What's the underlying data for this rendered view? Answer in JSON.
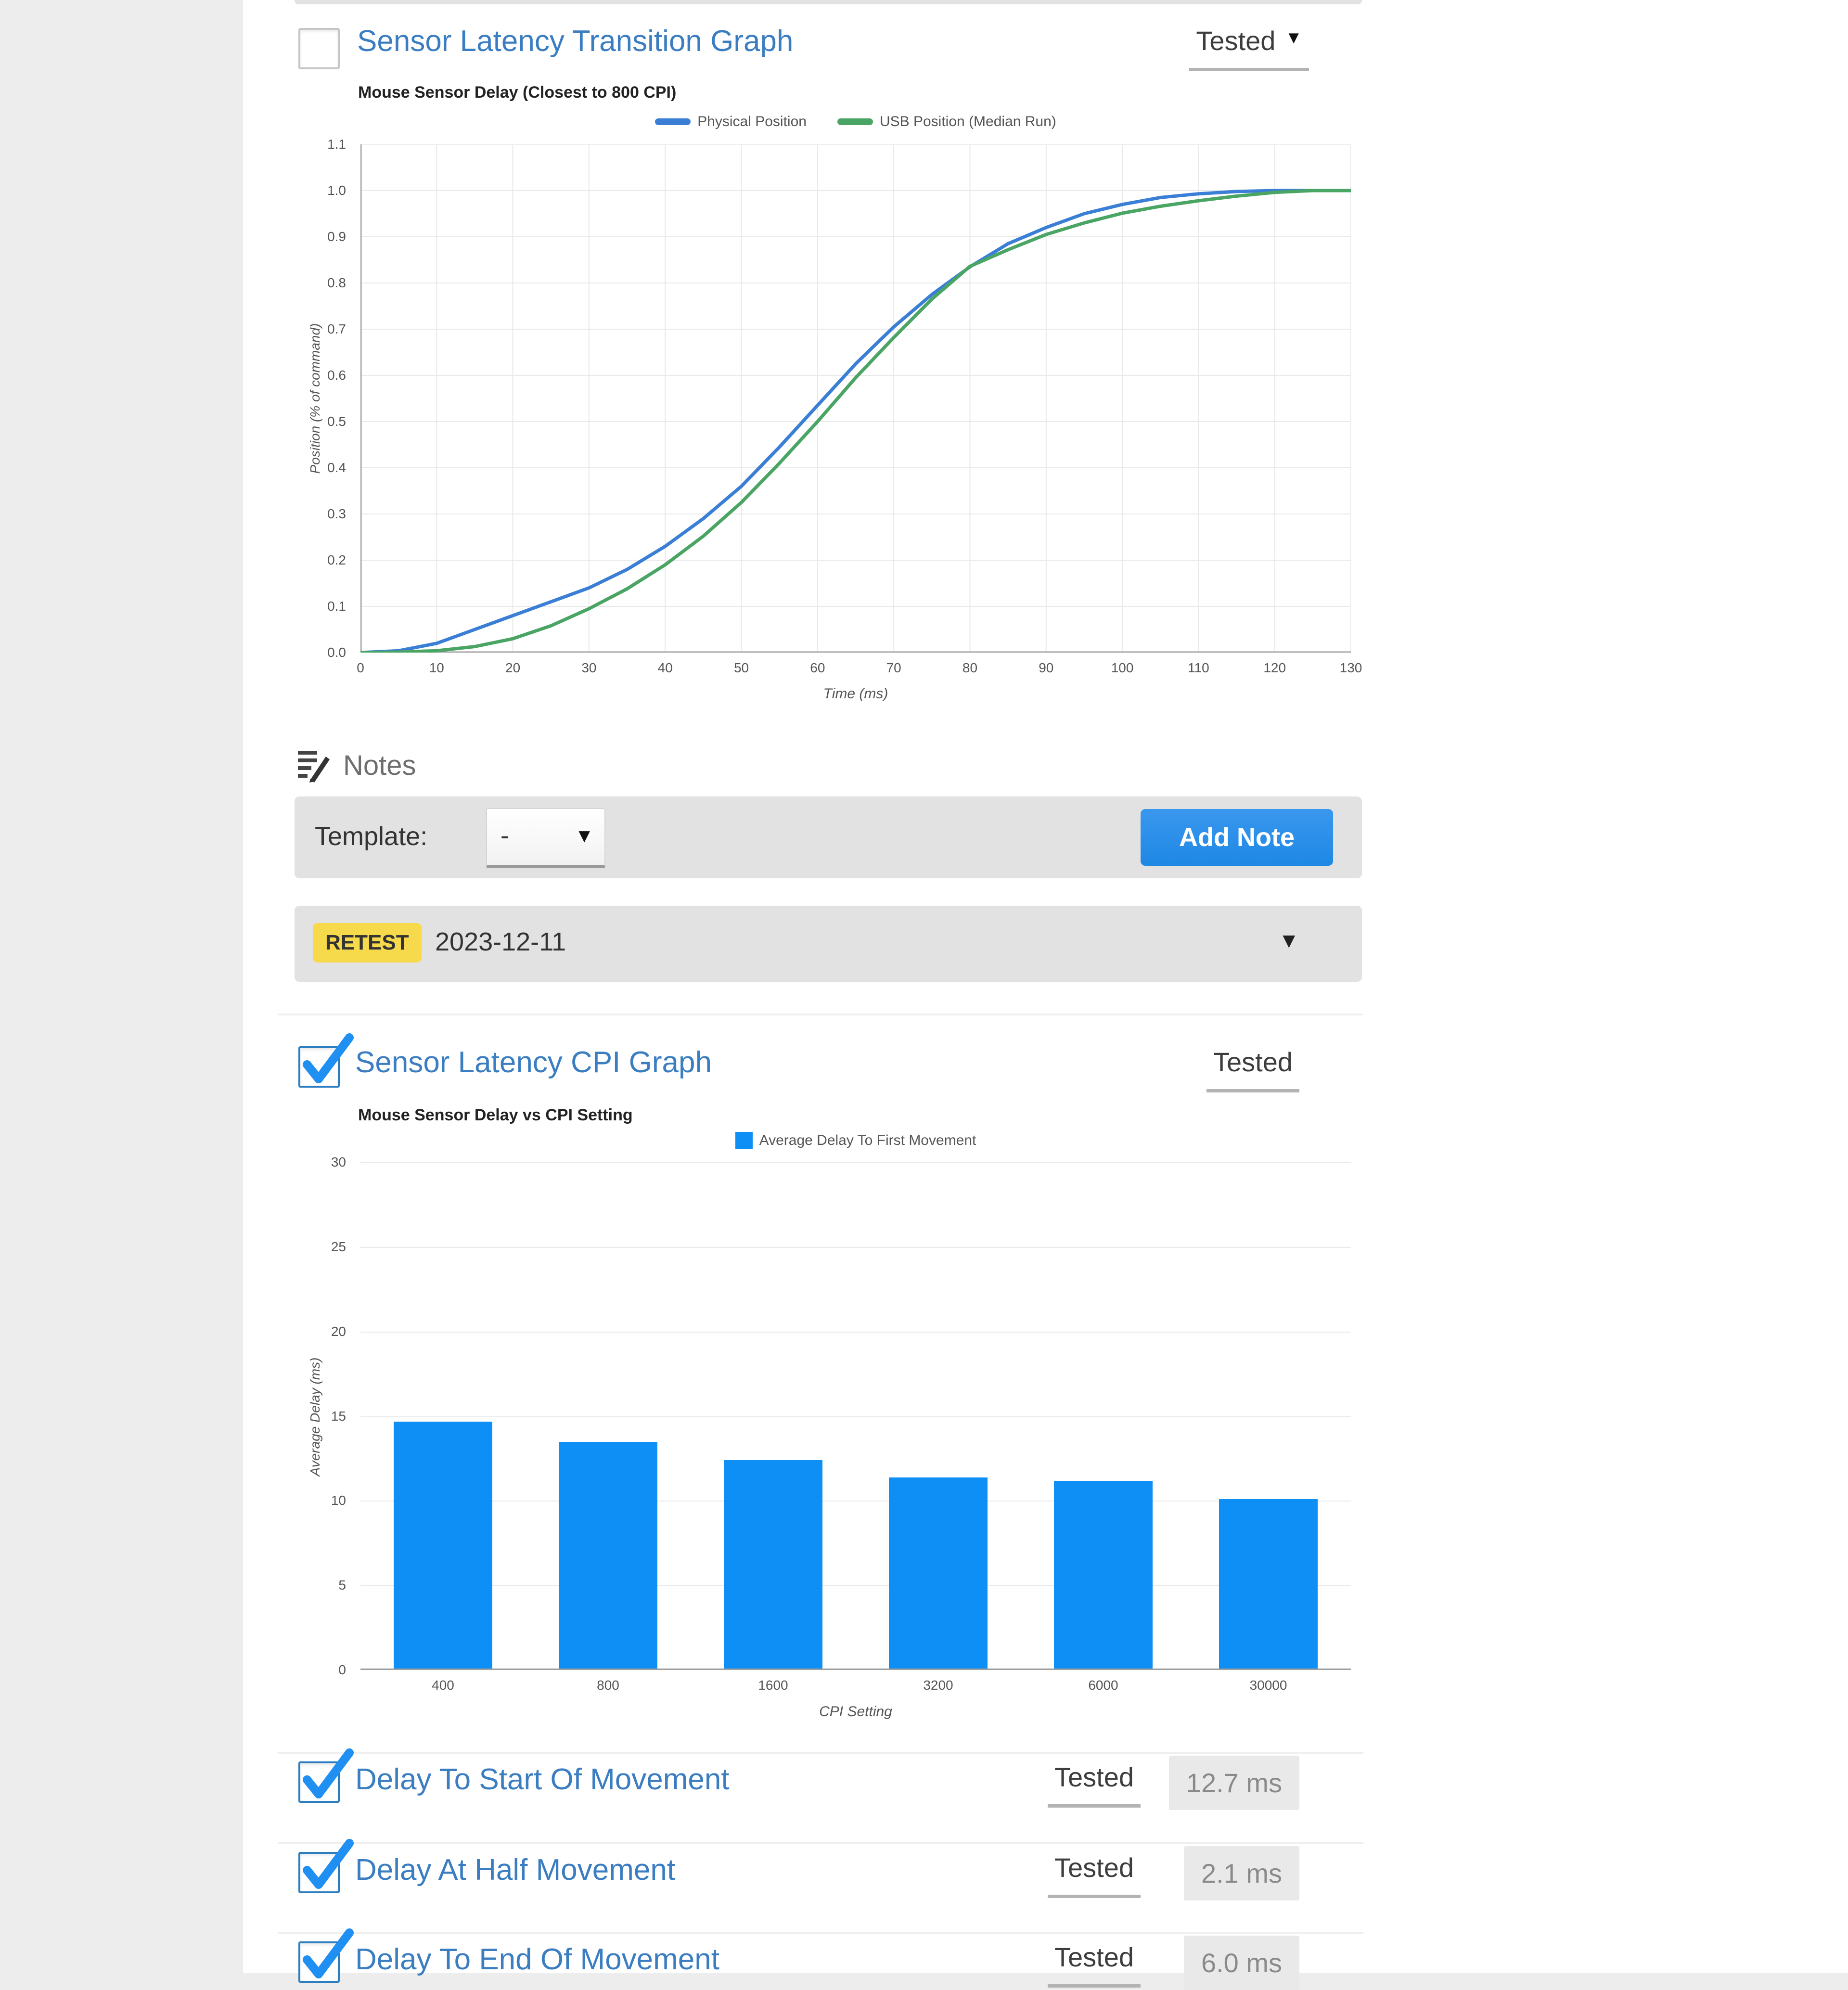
{
  "colors": {
    "link_blue": "#3b7dc1",
    "line_blue": "#3a7fd5",
    "line_green": "#4aa564",
    "bar_blue": "#0e8ff5",
    "button_blue": "#1e88e5",
    "retest_yellow": "#f7d94c",
    "panel_gray": "#e2e2e2",
    "badge_gray_bg": "#e9e9e9",
    "badge_gray_text": "#8a8a8a"
  },
  "icons": {
    "caret_down": "▼"
  },
  "sections": {
    "transition": {
      "title": "Sensor Latency Transition Graph",
      "status": "Tested",
      "checked": false
    },
    "cpi": {
      "title": "Sensor Latency CPI Graph",
      "status": "Tested",
      "checked": true
    }
  },
  "notes": {
    "heading": "Notes",
    "template_label": "Template:",
    "template_value": "-",
    "add_note_label": "Add Note"
  },
  "retest": {
    "badge": "RETEST",
    "date": "2023-12-11"
  },
  "rows": [
    {
      "label": "Delay To Start Of Movement",
      "status": "Tested",
      "value": "12.7 ms",
      "checked": true
    },
    {
      "label": "Delay At Half Movement",
      "status": "Tested",
      "value": "2.1 ms",
      "checked": true
    },
    {
      "label": "Delay To End Of Movement",
      "status": "Tested",
      "value": "6.0 ms",
      "checked": true
    }
  ],
  "chart_data": [
    {
      "type": "line",
      "title": "Mouse Sensor Delay (Closest to 800 CPI)",
      "xlabel": "Time (ms)",
      "ylabel": "Position (% of command)",
      "xlim": [
        0,
        130
      ],
      "ylim": [
        0,
        1.1
      ],
      "grid": true,
      "legend_position": "top",
      "x_ticks": [
        0,
        10,
        20,
        30,
        40,
        50,
        60,
        70,
        80,
        90,
        100,
        110,
        120,
        130
      ],
      "y_ticks": [
        "0.0",
        "0.1",
        "0.2",
        "0.3",
        "0.4",
        "0.5",
        "0.6",
        "0.7",
        "0.8",
        "0.9",
        "1.0",
        "1.1"
      ],
      "x": [
        0,
        5,
        10,
        15,
        20,
        25,
        30,
        35,
        40,
        45,
        50,
        55,
        60,
        65,
        70,
        75,
        80,
        85,
        90,
        95,
        100,
        105,
        110,
        115,
        120,
        125,
        130
      ],
      "series": [
        {
          "name": "Physical Position",
          "color": "#3a7fd5",
          "y": [
            0,
            0.004,
            0.02,
            0.05,
            0.08,
            0.11,
            0.14,
            0.18,
            0.23,
            0.29,
            0.36,
            0.445,
            0.535,
            0.625,
            0.705,
            0.775,
            0.835,
            0.885,
            0.92,
            0.95,
            0.97,
            0.985,
            0.993,
            0.998,
            1,
            1,
            1
          ]
        },
        {
          "name": "USB Position (Median Run)",
          "color": "#4aa564",
          "y": [
            0,
            0.001,
            0.004,
            0.013,
            0.03,
            0.058,
            0.095,
            0.138,
            0.19,
            0.252,
            0.325,
            0.41,
            0.5,
            0.595,
            0.682,
            0.765,
            0.836,
            0.872,
            0.905,
            0.93,
            0.951,
            0.966,
            0.978,
            0.988,
            0.996,
            1,
            1
          ]
        }
      ]
    },
    {
      "type": "bar",
      "title": "Mouse Sensor Delay vs CPI Setting",
      "xlabel": "CPI Setting",
      "ylabel": "Average Delay (ms)",
      "ylim": [
        0,
        30
      ],
      "y_ticks": [
        0,
        5,
        10,
        15,
        20,
        25,
        30
      ],
      "categories": [
        "400",
        "800",
        "1600",
        "3200",
        "6000",
        "30000"
      ],
      "series": [
        {
          "name": "Average Delay To First Movement",
          "color": "#0e8ff5",
          "values": [
            14.6,
            13.4,
            12.3,
            11.3,
            11.1,
            10.0
          ]
        }
      ],
      "legend_position": "top"
    }
  ]
}
